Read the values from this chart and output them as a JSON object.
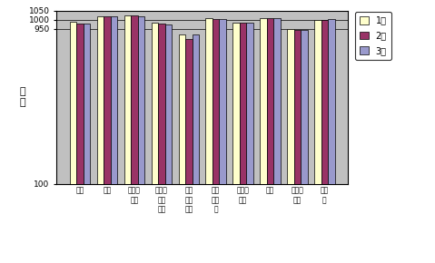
{
  "categories": [
    "食料",
    "住居",
    "光熱・\n水道",
    "家具・\n家事\n貿用",
    "被服\n及び\n履物",
    "保健\n医療\n費",
    "交通・\n通信",
    "教育",
    "教養・\n娯楽",
    "諸雑\n費"
  ],
  "series": {
    "1月": [
      988,
      1018,
      1022,
      984,
      920,
      1008,
      985,
      1008,
      950,
      997
    ],
    "2月": [
      978,
      1016,
      1021,
      978,
      893,
      1005,
      982,
      1008,
      942,
      996
    ],
    "3月": [
      981,
      1016,
      1020,
      975,
      920,
      1005,
      982,
      1007,
      942,
      1001
    ]
  },
  "colors": {
    "1月": "#FFFFCC",
    "2月": "#993366",
    "3月": "#9999CC"
  },
  "ylabel": "指\n数",
  "ylim": [
    100,
    1050
  ],
  "yticks": [
    100,
    950,
    1000,
    1050
  ],
  "ytick_labels": [
    "100",
    "950",
    "1000",
    "1050"
  ],
  "background_color": "#C0C0C0",
  "bar_width": 0.25,
  "legend_labels": [
    "1月",
    "2月",
    "3月"
  ]
}
